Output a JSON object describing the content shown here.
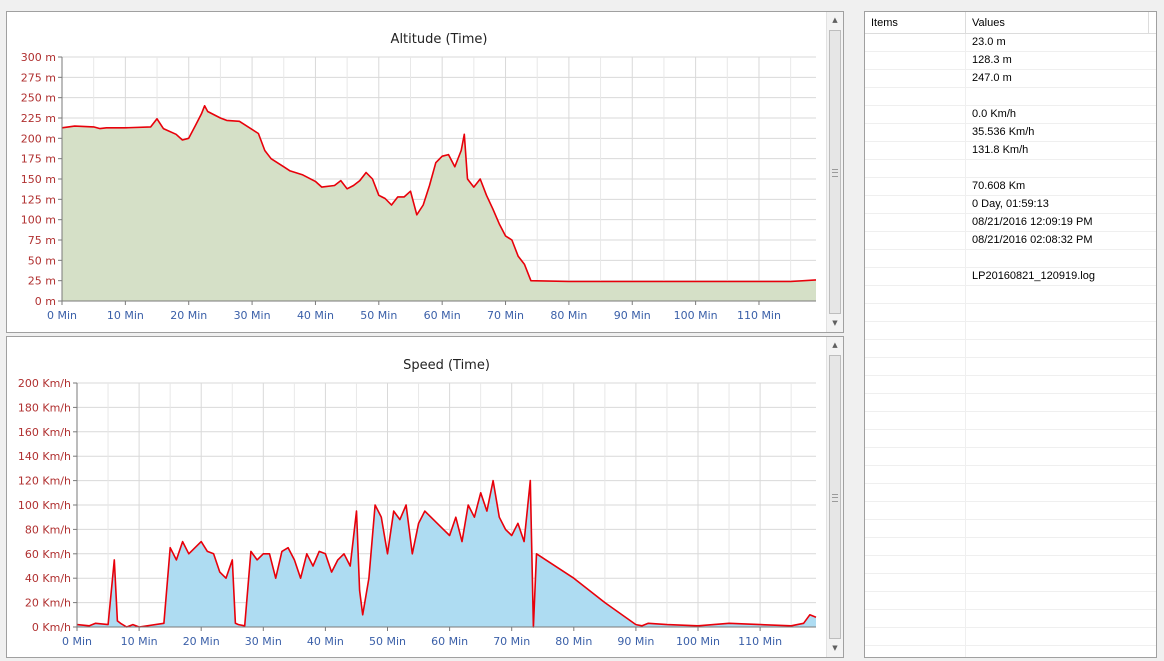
{
  "altitude_chart": {
    "title": "Altitude (Time)",
    "chart_data": {
      "type": "area",
      "title": "Altitude (Time)",
      "xlabel": "",
      "ylabel": "",
      "x_unit": "Min",
      "x_range": [
        0,
        119
      ],
      "ylim": [
        0,
        300
      ],
      "y_unit": "m",
      "x_ticks": [
        "0 Min",
        "10 Min",
        "20 Min",
        "30 Min",
        "40 Min",
        "50 Min",
        "60 Min",
        "70 Min",
        "80 Min",
        "90 Min",
        "100 Min",
        "110 Min"
      ],
      "y_ticks": [
        "0 m",
        "25 m",
        "50 m",
        "75 m",
        "100 m",
        "125 m",
        "150 m",
        "175 m",
        "200 m",
        "225 m",
        "250 m",
        "275 m",
        "300 m"
      ],
      "grid": true,
      "line_color": "#e8000a",
      "fill_color": "#d5e0c7",
      "series": [
        {
          "x": [
            0,
            2,
            5,
            6,
            7,
            10,
            14,
            15,
            16,
            18,
            19,
            20,
            21,
            22,
            22.5,
            23,
            25,
            26,
            28,
            31,
            32,
            33,
            35,
            36,
            38,
            40,
            41,
            43,
            44,
            45,
            46,
            47,
            48,
            49,
            50,
            51,
            52,
            53,
            54,
            55,
            56,
            57,
            58,
            59,
            60,
            61,
            62,
            63,
            63.5,
            64,
            65,
            66,
            67,
            68,
            69,
            70,
            71,
            72,
            73,
            74,
            80,
            90,
            100,
            110,
            115,
            119
          ],
          "y": [
            213,
            215,
            214,
            212,
            213,
            213,
            214,
            224,
            212,
            205,
            198,
            200,
            215,
            230,
            240,
            233,
            225,
            222,
            221,
            206,
            185,
            175,
            165,
            160,
            155,
            147,
            140,
            142,
            148,
            138,
            142,
            148,
            158,
            150,
            130,
            126,
            118,
            128,
            128,
            135,
            106,
            118,
            142,
            170,
            178,
            180,
            165,
            185,
            205,
            150,
            140,
            150,
            130,
            113,
            95,
            80,
            75,
            55,
            45,
            25,
            24,
            24,
            24,
            24,
            24,
            26
          ]
        }
      ]
    }
  },
  "speed_chart": {
    "title": "Speed (Time)",
    "chart_data": {
      "type": "area",
      "title": "Speed (Time)",
      "xlabel": "",
      "ylabel": "",
      "x_unit": "Min",
      "x_range": [
        0,
        119
      ],
      "ylim": [
        0,
        200
      ],
      "y_unit": "Km/h",
      "x_ticks": [
        "0 Min",
        "10 Min",
        "20 Min",
        "30 Min",
        "40 Min",
        "50 Min",
        "60 Min",
        "70 Min",
        "80 Min",
        "90 Min",
        "100 Min",
        "110 Min"
      ],
      "y_ticks": [
        "0 Km/h",
        "20 Km/h",
        "40 Km/h",
        "60 Km/h",
        "80 Km/h",
        "100 Km/h",
        "120 Km/h",
        "140 Km/h",
        "160 Km/h",
        "180 Km/h",
        "200 Km/h"
      ],
      "grid": true,
      "line_color": "#e8000a",
      "fill_color": "#aedcf2",
      "series": [
        {
          "x": [
            0,
            2,
            3,
            5,
            6,
            6.5,
            7,
            8,
            9,
            10,
            14,
            15,
            16,
            17,
            18,
            19,
            20,
            21,
            22,
            23,
            24,
            25,
            25.5,
            26,
            27,
            28,
            29,
            30,
            31,
            32,
            33,
            34,
            35,
            36,
            37,
            38,
            39,
            40,
            41,
            42,
            43,
            44,
            45,
            45.5,
            46,
            47,
            48,
            49,
            50,
            51,
            52,
            53,
            54,
            55,
            56,
            57,
            58,
            59,
            60,
            61,
            62,
            63,
            64,
            65,
            66,
            67,
            68,
            69,
            70,
            71,
            72,
            73,
            73.5,
            74,
            80,
            85,
            90,
            91,
            92,
            95,
            100,
            105,
            110,
            115,
            117,
            118,
            119
          ],
          "y": [
            2,
            1,
            3,
            2,
            55,
            5,
            3,
            0,
            2,
            0,
            3,
            65,
            55,
            70,
            60,
            65,
            70,
            62,
            60,
            45,
            40,
            55,
            3,
            2,
            1,
            62,
            55,
            60,
            60,
            40,
            62,
            65,
            55,
            40,
            60,
            50,
            62,
            60,
            45,
            55,
            60,
            50,
            95,
            30,
            10,
            40,
            100,
            90,
            60,
            95,
            88,
            100,
            60,
            85,
            95,
            90,
            85,
            80,
            75,
            90,
            70,
            100,
            90,
            110,
            95,
            120,
            90,
            80,
            75,
            85,
            70,
            120,
            0,
            60,
            40,
            20,
            2,
            1,
            3,
            2,
            1,
            3,
            2,
            1,
            3,
            10,
            8
          ]
        }
      ]
    }
  },
  "values_panel": {
    "headers": {
      "items": "Items",
      "values": "Values"
    },
    "rows": [
      {
        "item": "",
        "value": "23.0 m"
      },
      {
        "item": "",
        "value": "128.3 m"
      },
      {
        "item": "",
        "value": "247.0 m"
      },
      {
        "item": "",
        "value": ""
      },
      {
        "item": "",
        "value": "0.0 Km/h"
      },
      {
        "item": "",
        "value": "35.536 Km/h"
      },
      {
        "item": "",
        "value": "131.8 Km/h"
      },
      {
        "item": "",
        "value": ""
      },
      {
        "item": "",
        "value": "70.608 Km"
      },
      {
        "item": "",
        "value": "0 Day, 01:59:13"
      },
      {
        "item": "",
        "value": "08/21/2016 12:09:19 PM"
      },
      {
        "item": "",
        "value": "08/21/2016 02:08:32 PM"
      },
      {
        "item": "",
        "value": ""
      },
      {
        "item": "",
        "value": "LP20160821_120919.log"
      },
      {
        "item": "",
        "value": ""
      },
      {
        "item": "",
        "value": ""
      },
      {
        "item": "",
        "value": ""
      },
      {
        "item": "",
        "value": ""
      },
      {
        "item": "",
        "value": ""
      },
      {
        "item": "",
        "value": ""
      },
      {
        "item": "",
        "value": ""
      },
      {
        "item": "",
        "value": ""
      },
      {
        "item": "",
        "value": ""
      },
      {
        "item": "",
        "value": ""
      },
      {
        "item": "",
        "value": ""
      },
      {
        "item": "",
        "value": ""
      },
      {
        "item": "",
        "value": ""
      },
      {
        "item": "",
        "value": ""
      },
      {
        "item": "",
        "value": ""
      },
      {
        "item": "",
        "value": ""
      },
      {
        "item": "",
        "value": ""
      },
      {
        "item": "",
        "value": ""
      },
      {
        "item": "",
        "value": ""
      },
      {
        "item": "",
        "value": ""
      },
      {
        "item": "",
        "value": ""
      }
    ]
  },
  "icons": {
    "scroll_up": "scroll-up-arrow-icon",
    "scroll_down": "scroll-down-arrow-icon",
    "grip": "scroll-grip-icon"
  }
}
